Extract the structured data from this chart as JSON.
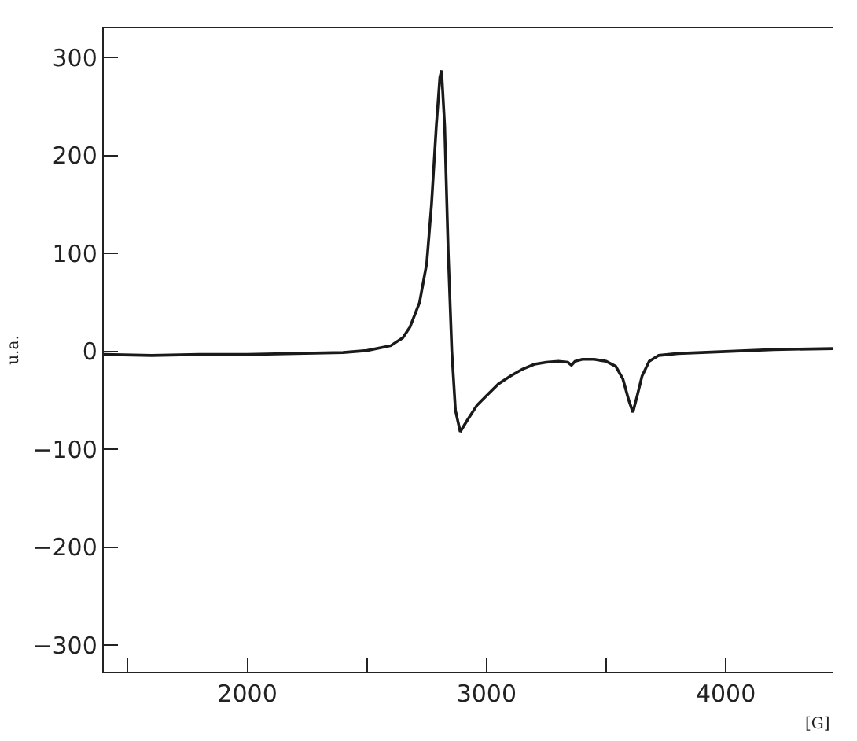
{
  "chart_data": {
    "type": "line",
    "xlabel": "[G]",
    "ylabel": "u.a.",
    "x": [
      1400,
      1600,
      1800,
      2000,
      2200,
      2400,
      2500,
      2600,
      2650,
      2680,
      2720,
      2750,
      2770,
      2790,
      2805,
      2812,
      2825,
      2840,
      2855,
      2870,
      2890,
      2920,
      2960,
      3000,
      3050,
      3100,
      3150,
      3200,
      3250,
      3300,
      3340,
      3355,
      3370,
      3400,
      3450,
      3500,
      3540,
      3570,
      3595,
      3612,
      3630,
      3650,
      3680,
      3720,
      3800,
      3900,
      4000,
      4200,
      4450
    ],
    "values": [
      -3,
      -4,
      -3,
      -3,
      -2,
      -1,
      1,
      6,
      14,
      25,
      50,
      90,
      150,
      230,
      280,
      287,
      230,
      100,
      0,
      -60,
      -82,
      -70,
      -55,
      -45,
      -33,
      -25,
      -18,
      -13,
      -11,
      -10,
      -11,
      -14,
      -10,
      -8,
      -8,
      -10,
      -15,
      -28,
      -50,
      -62,
      -45,
      -25,
      -10,
      -4,
      -2,
      -1,
      0,
      2,
      3
    ],
    "color": "#1a1a1a",
    "line_style": "solid",
    "marker": "none",
    "grid": false,
    "legend": false,
    "xlim": [
      1400,
      4450
    ],
    "xticks": [
      {
        "value": 1500,
        "label": null
      },
      2000,
      {
        "value": 2500,
        "label": null
      },
      3000,
      {
        "value": 3500,
        "label": null
      },
      4000
    ],
    "ylim": [
      -327,
      330
    ],
    "yticks": [
      -300,
      -200,
      -100,
      0,
      100,
      200,
      300
    ]
  }
}
